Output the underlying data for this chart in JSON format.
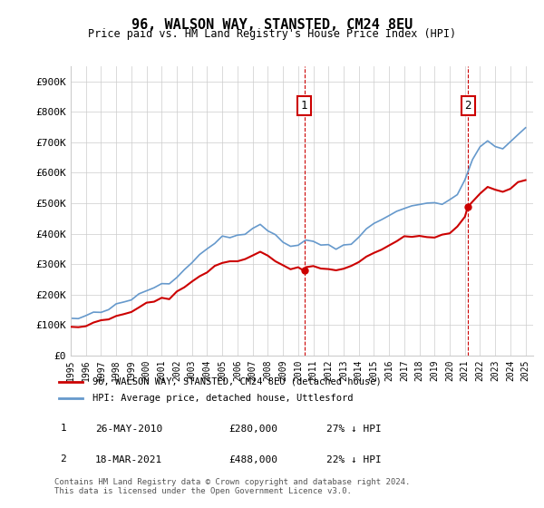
{
  "title": "96, WALSON WAY, STANSTED, CM24 8EU",
  "subtitle": "Price paid vs. HM Land Registry's House Price Index (HPI)",
  "xlabel": "",
  "ylabel": "",
  "ylim": [
    0,
    950000
  ],
  "yticks": [
    0,
    100000,
    200000,
    300000,
    400000,
    500000,
    600000,
    700000,
    800000,
    900000
  ],
  "ytick_labels": [
    "£0",
    "£100K",
    "£200K",
    "£300K",
    "£400K",
    "£500K",
    "£600K",
    "£700K",
    "£800K",
    "£900K"
  ],
  "sale1_date_num": 2010.4,
  "sale1_price": 280000,
  "sale1_label": "1",
  "sale2_date_num": 2021.2,
  "sale2_price": 488000,
  "sale2_label": "2",
  "legend_entry1": "96, WALSON WAY, STANSTED, CM24 8EU (detached house)",
  "legend_entry2": "HPI: Average price, detached house, Uttlesford",
  "table_row1": [
    "1",
    "26-MAY-2010",
    "£280,000",
    "27% ↓ HPI"
  ],
  "table_row2": [
    "2",
    "18-MAR-2021",
    "£488,000",
    "22% ↓ HPI"
  ],
  "footnote": "Contains HM Land Registry data © Crown copyright and database right 2024.\nThis data is licensed under the Open Government Licence v3.0.",
  "red_color": "#cc0000",
  "blue_color": "#6699cc",
  "background_color": "#ffffff",
  "grid_color": "#cccccc"
}
